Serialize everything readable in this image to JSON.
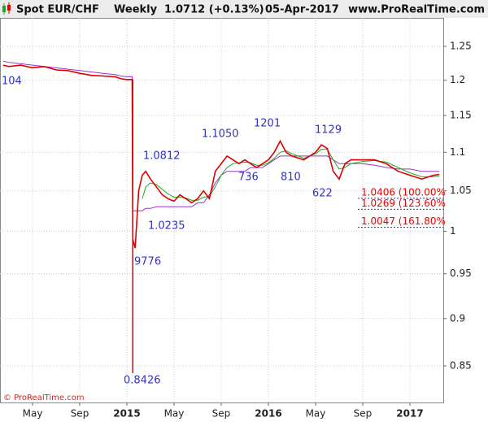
{
  "chart_data": {
    "type": "line",
    "title": "Spot EUR/CHF",
    "period": "Weekly",
    "last_price": "1.0712 (+0.13%)",
    "date": "05-Apr-2017",
    "source": "www.ProRealTime.com",
    "copyright": "© ProRealTime.com",
    "log_scale": true,
    "grid": true,
    "xlim": [
      1.24,
      38.83
    ],
    "ylim": [
      0.8133,
      1.2937
    ],
    "xticks": [
      {
        "value": 4,
        "label": "May"
      },
      {
        "value": 8,
        "label": "Sep"
      },
      {
        "value": 12,
        "label": "2015"
      },
      {
        "value": 16,
        "label": "May"
      },
      {
        "value": 20,
        "label": "Sep"
      },
      {
        "value": 24,
        "label": "2016"
      },
      {
        "value": 28,
        "label": "May"
      },
      {
        "value": 32,
        "label": "Sep"
      },
      {
        "value": 36,
        "label": "2017"
      }
    ],
    "yticks": [
      0.85,
      0.9,
      0.95,
      1,
      1.05,
      1.1,
      1.15,
      1.2,
      1.25
    ],
    "x": [
      1.5,
      2,
      3,
      4,
      5,
      6,
      7,
      8,
      9,
      10,
      11,
      11.5,
      12,
      12.45,
      12.5,
      12.7,
      13,
      13.3,
      13.6,
      14,
      14.5,
      15,
      15.5,
      16,
      16.5,
      17,
      17.5,
      18,
      18.5,
      19,
      19.5,
      20,
      20.5,
      21,
      21.5,
      22,
      22.5,
      23,
      23.5,
      24,
      24.5,
      25,
      25.5,
      26,
      27,
      28,
      28.5,
      29,
      29.5,
      30,
      30.5,
      31,
      32,
      33,
      34,
      35,
      36,
      37,
      38,
      38.5
    ],
    "series": [
      {
        "color": "#9933cc",
        "values": [
          1.228,
          1.226,
          1.224,
          1.222,
          1.22,
          1.218,
          1.216,
          1.214,
          1.212,
          1.21,
          1.208,
          1.206,
          1.205,
          1.205,
          1.025,
          1.025,
          1.025,
          1.025,
          1.028,
          1.028,
          1.03,
          1.03,
          1.03,
          1.03,
          1.03,
          1.03,
          1.03,
          1.035,
          1.035,
          1.045,
          1.06,
          1.07,
          1.075,
          1.075,
          1.075,
          1.075,
          1.08,
          1.08,
          1.08,
          1.085,
          1.09,
          1.095,
          1.095,
          1.095,
          1.095,
          1.095,
          1.095,
          1.095,
          1.09,
          1.085,
          1.085,
          1.085,
          1.085,
          1.083,
          1.08,
          1.078,
          1.078,
          1.075,
          1.075,
          1.075
        ]
      },
      {
        "color": "#22aa22",
        "values": [
          null,
          null,
          null,
          null,
          null,
          null,
          null,
          null,
          null,
          null,
          null,
          null,
          null,
          null,
          null,
          null,
          null,
          1.04,
          1.055,
          1.06,
          1.058,
          1.052,
          1.046,
          1.042,
          1.042,
          1.041,
          1.038,
          1.038,
          1.042,
          1.043,
          1.055,
          1.07,
          1.08,
          1.085,
          1.086,
          1.087,
          1.086,
          1.083,
          1.083,
          1.086,
          1.092,
          1.1,
          1.102,
          1.098,
          1.092,
          1.098,
          1.104,
          1.104,
          1.09,
          1.078,
          1.08,
          1.085,
          1.088,
          1.089,
          1.087,
          1.08,
          1.073,
          1.068,
          1.068,
          1.069
        ]
      },
      {
        "color": "#dd0000",
        "values": [
          1.222,
          1.22,
          1.222,
          1.218,
          1.22,
          1.215,
          1.214,
          1.21,
          1.207,
          1.206,
          1.205,
          1.202,
          1.201,
          1.201,
          0.99,
          0.98,
          1.05,
          1.07,
          1.075,
          1.065,
          1.055,
          1.045,
          1.04,
          1.037,
          1.045,
          1.04,
          1.035,
          1.04,
          1.05,
          1.04,
          1.075,
          1.085,
          1.095,
          1.09,
          1.085,
          1.09,
          1.085,
          1.08,
          1.085,
          1.09,
          1.1,
          1.115,
          1.1,
          1.095,
          1.09,
          1.1,
          1.11,
          1.105,
          1.075,
          1.065,
          1.085,
          1.09,
          1.09,
          1.09,
          1.085,
          1.075,
          1.07,
          1.065,
          1.07,
          1.071
        ]
      }
    ],
    "spike": {
      "x": 12.5,
      "low": 0.8426,
      "high": 1.201,
      "color": "#dd0000"
    },
    "annotations": [
      "104",
      "1.0812",
      "1.1050",
      "1201",
      "1129",
      "736",
      "810",
      "622",
      "1.0235",
      "9776",
      "0.8426"
    ],
    "levels": [
      {
        "value": 1.0406,
        "label": "1.0406 (100.00%"
      },
      {
        "value": 1.0269,
        "label": "1.0269 (123.60%"
      },
      {
        "value": 1.0047,
        "label": "1.0047 (161.80%"
      }
    ]
  }
}
